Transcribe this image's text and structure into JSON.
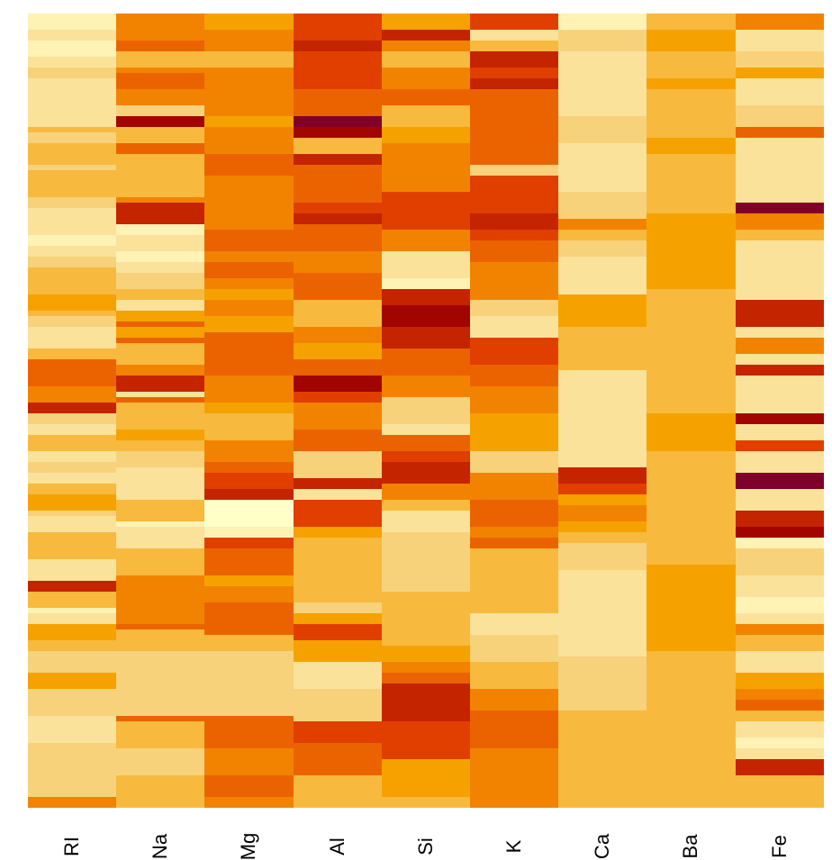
{
  "chart_data": {
    "type": "heatmap",
    "title": "",
    "xlabel": "",
    "ylabel": "",
    "columns": [
      "RI",
      "Na",
      "Mg",
      "Al",
      "Si",
      "K",
      "Ca",
      "Ba",
      "Fe"
    ],
    "n_rows": 147,
    "legend": "none",
    "palette": [
      "#FFFFC8",
      "#FEF2B4",
      "#FAE29A",
      "#F7D27B",
      "#F7B93E",
      "#F5A200",
      "#F28300",
      "#EB6300",
      "#E03F00",
      "#C42400",
      "#A20400",
      "#7F0028"
    ],
    "palette_meaning": "index 0 = lowest value (pale yellow) to index 11 = highest value (dark red)",
    "cells_encoding": "each column is a string, one hex-digit palette index per row from top to bottom",
    "cells": {
      "RI": "111222111121233222222222222443344444433444444333222222211222333444444555544333222224447778776666999333222444222333224445555332222444444222222999444112225554443333335555333333322222233333333333336666",
      "Na": "666666777444667777666333aaa44477744444444446699999111222111222333444222557755774444466699922744444445544333332222222444444122222444444666666666666744444433333333333333377444444333333344444444",
      "Mg": "555666666444666666666666555666666777777666666666666777777666777666555666555557777777777666666555444444666666778888999000000111888777777555666677777777444433333333333333377777777666666777777666",
      "Al": "888888999888888888777777bbbaaa444999777777777888999777777666666777777444444666665557777aaaa888666666777777333333999222888888555444444444444444333555888555555222222333333338888887777777444444444",
      "Si": "555999666444666666777444444555666666666666888888888666666222222111999aaaaaa99999777777666666333333222777888999999666444222223333333333333334444444444444555666777999999999888888888555555555444",
      "K": "888222444999888999777777777777777777333888888888999888777777666666666333222222888888777777666666555555555333333666666777777666777444444444444444222222333333444444666666777777777666666666666666",
      "Ca": "111333333222222222222222333333222222222222333333666444333222222222555555554444444444222222222222222222222222999888555666555444333333222222222222222222222333333333333444444444444444444444444",
      "Ba": "444555555444444555444444444444555444444444444444555555555555555555444444444444444444444444444444555555555444444444444444444444444444555555555555555555555444444444444444444444444444444444444444",
      "Fe": "666222222333555222222333333777222222222222222bbb666444222222222222222999999222666222999222222222aaa222888222222bbb222222999aaa111333333222222111222666444222222555666777444222111222999444444444"
    },
    "x_tick_labels": [
      "RI",
      "Na",
      "Mg",
      "Al",
      "Si",
      "K",
      "Ca",
      "Ba",
      "Fe"
    ],
    "y_tick_labels": []
  }
}
